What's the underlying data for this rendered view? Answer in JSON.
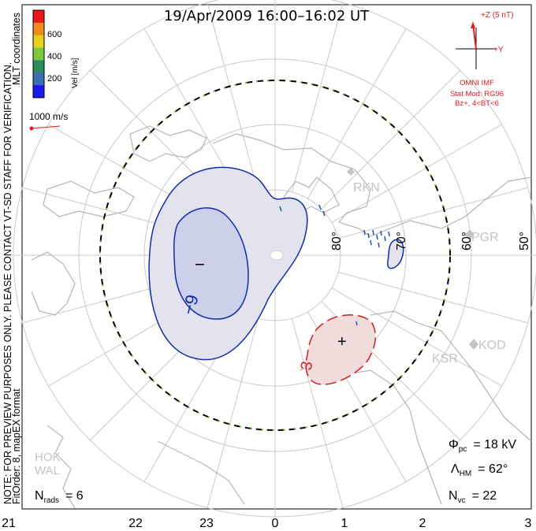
{
  "title": "19/Apr/2009 16:00–16:02 UT",
  "side_note": "NOTE: FOR PREVIEW PURPOSES ONLY. PLEASE CONTACT VT-SD STAFF FOR VERIFICATION.",
  "fit_order": "FitOrder: 8, mapEX format",
  "coordinates": "MLT coordinates",
  "colorbar": {
    "label": "Vel [m/s]",
    "ticks": [
      "600",
      "400",
      "200"
    ],
    "colors": [
      "#e8191b",
      "#f08c1e",
      "#e6d21e",
      "#7cc842",
      "#2e8a5f",
      "#3b6fb0",
      "#1a1aee"
    ]
  },
  "ref_vector": "1000 m/s",
  "imf": {
    "z_label": "+Z (5 nT)",
    "y_label": "+Y",
    "source": "OMNI IMF",
    "stat_mod": "Stat Mod: RG96",
    "condition": "Bz+, 4<BT<6",
    "color": "#e41a1c"
  },
  "latitude_labels": [
    "80°",
    "70°",
    "60°",
    "50°"
  ],
  "mlt_labels": [
    "21",
    "22",
    "23",
    "0",
    "1",
    "2",
    "3"
  ],
  "radars": [
    "RKN",
    "PGR",
    "KOD",
    "KSR",
    "HOK",
    "WAL"
  ],
  "contours": {
    "negative_label": "−9",
    "positive_label": "3",
    "minus_marker": "−",
    "plus_marker": "+"
  },
  "stats": {
    "phi_pc": {
      "symbol": "Φ",
      "sub": "pc",
      "value": "= 18 kV"
    },
    "lambda_hm": {
      "symbol": "Λ",
      "sub": "HM",
      "value": "= 62°"
    },
    "n_vc": {
      "symbol": "N",
      "sub": "vc",
      "value": "= 22"
    },
    "n_rads": {
      "symbol": "N",
      "sub": "rads",
      "value": "= 6"
    }
  }
}
